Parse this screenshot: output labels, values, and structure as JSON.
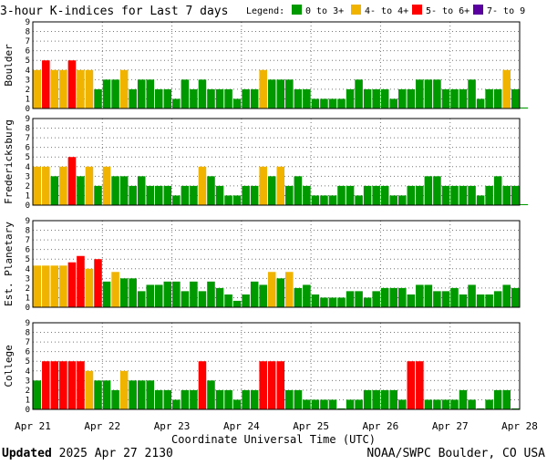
{
  "title": "3-hour K-indices for Last 7 days",
  "legend": {
    "label": "Legend:",
    "items": [
      {
        "label": "0 to 3+",
        "color": "#009900"
      },
      {
        "label": "4- to 4+",
        "color": "#f0b400"
      },
      {
        "label": "5- to 6+",
        "color": "#ff0000"
      },
      {
        "label": "7- to 9",
        "color": "#5a00a0"
      }
    ]
  },
  "footer": {
    "updated_label": "Updated",
    "updated_value": "2025 Apr 27 2130",
    "source": "NOAA/SWPC Boulder, CO USA"
  },
  "chart_data": {
    "type": "bar",
    "title": "3-hour K-indices for Last 7 days",
    "xlabel": "Coordinate Universal Time (UTC)",
    "x_tick_labels": [
      "Apr 21",
      "Apr 22",
      "Apr 23",
      "Apr 24",
      "Apr 25",
      "Apr 26",
      "Apr 27",
      "Apr 28"
    ],
    "ylim": [
      0,
      9
    ],
    "y_ticks": [
      0,
      1,
      2,
      3,
      4,
      5,
      6,
      7,
      8,
      9
    ],
    "grid": true,
    "interval": "3-hour",
    "panels": [
      {
        "name": "Boulder",
        "values": [
          4,
          5,
          4,
          4,
          5,
          4,
          4,
          2,
          3,
          3,
          4,
          2,
          3,
          3,
          2,
          2,
          1,
          3,
          2,
          3,
          2,
          2,
          2,
          1,
          2,
          2,
          4,
          3,
          3,
          3,
          2,
          2,
          1,
          1,
          1,
          1,
          2,
          3,
          2,
          2,
          2,
          1,
          2,
          2,
          3,
          3,
          3,
          2,
          2,
          2,
          3,
          1,
          2,
          2,
          4,
          2,
          0.1
        ]
      },
      {
        "name": "Fredericksburg",
        "values": [
          4,
          4,
          3,
          4,
          5,
          3,
          4,
          2,
          4,
          3,
          3,
          2,
          3,
          2,
          2,
          2,
          1,
          2,
          2,
          4,
          3,
          2,
          1,
          1,
          2,
          2,
          4,
          3,
          4,
          2,
          3,
          2,
          1,
          1,
          1,
          2,
          2,
          1,
          2,
          2,
          2,
          1,
          1,
          2,
          2,
          3,
          3,
          2,
          2,
          2,
          2,
          1,
          2,
          3,
          2,
          2,
          0.1
        ]
      },
      {
        "name": "Est. Planetary",
        "values": [
          4.33,
          4.33,
          4.33,
          4.33,
          4.67,
          5.33,
          4,
          5,
          2.67,
          3.67,
          3,
          3,
          1.67,
          2.33,
          2.33,
          2.67,
          2.67,
          1.67,
          2.67,
          1.67,
          2.67,
          2,
          1.33,
          0.67,
          1.33,
          2.67,
          2.33,
          3.67,
          3,
          3.67,
          2,
          2.33,
          1.33,
          1,
          1,
          1,
          1.67,
          1.67,
          1,
          1.67,
          2,
          2,
          2,
          1.33,
          2.33,
          2.33,
          1.67,
          1.67,
          2,
          1.33,
          2.33,
          1.33,
          1.33,
          1.67,
          2.33,
          2
        ]
      },
      {
        "name": "College",
        "values": [
          3,
          5,
          5,
          5,
          5,
          5,
          4,
          3,
          3,
          2,
          4,
          3,
          3,
          3,
          2,
          2,
          1,
          2,
          2,
          5,
          3,
          2,
          2,
          1,
          2,
          2,
          5,
          5,
          5,
          2,
          2,
          1,
          1,
          1,
          1,
          0.1,
          1,
          1,
          2,
          2,
          2,
          2,
          1,
          5,
          5,
          1,
          1,
          1,
          1,
          2,
          1,
          0.1,
          1,
          2,
          2,
          0.1
        ]
      }
    ]
  }
}
